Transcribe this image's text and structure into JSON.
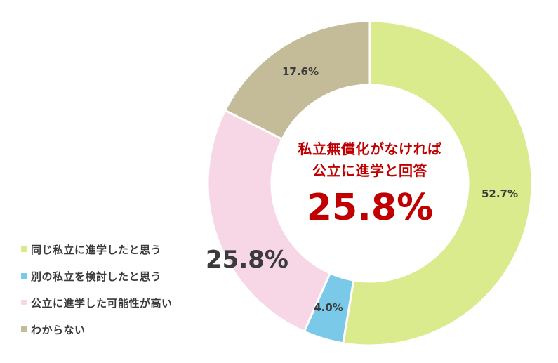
{
  "chart_data": {
    "type": "pie",
    "variant": "donut",
    "title": "",
    "categories": [
      "同じ私立に進学したと思う",
      "別の私立を検討したと思う",
      "公立に進学した可能性が高い",
      "わからない"
    ],
    "values": [
      52.7,
      4.0,
      25.8,
      17.6
    ],
    "unit": "%",
    "colors": [
      "#d9eb8c",
      "#7ac9e8",
      "#f7d6e6",
      "#c4bb99"
    ],
    "data_labels": [
      "52.7%",
      "4.0%",
      "25.8%",
      "17.6%"
    ],
    "legend_position": "left-bottom",
    "start_angle_deg": 0,
    "direction": "clockwise",
    "center_annotation": {
      "line1": "私立無償化がなければ",
      "line2": "公立に進学と回答",
      "value": "25.8%"
    }
  },
  "legend": [
    {
      "label": "同じ私立に進学したと思う",
      "color": "#d9eb8c"
    },
    {
      "label": "別の私立を検討したと思う",
      "color": "#7ac9e8"
    },
    {
      "label": "公立に進学した可能性が高い",
      "color": "#f7d6e6"
    },
    {
      "label": "わからない",
      "color": "#c4bb99"
    }
  ],
  "labels": {
    "green": "52.7%",
    "blue": "4.0%",
    "pink": "25.8%",
    "tan": "17.6%"
  },
  "center": {
    "line1": "私立無償化がなければ",
    "line2": "公立に進学と回答",
    "value": "25.8%",
    "color": "#c00000"
  }
}
